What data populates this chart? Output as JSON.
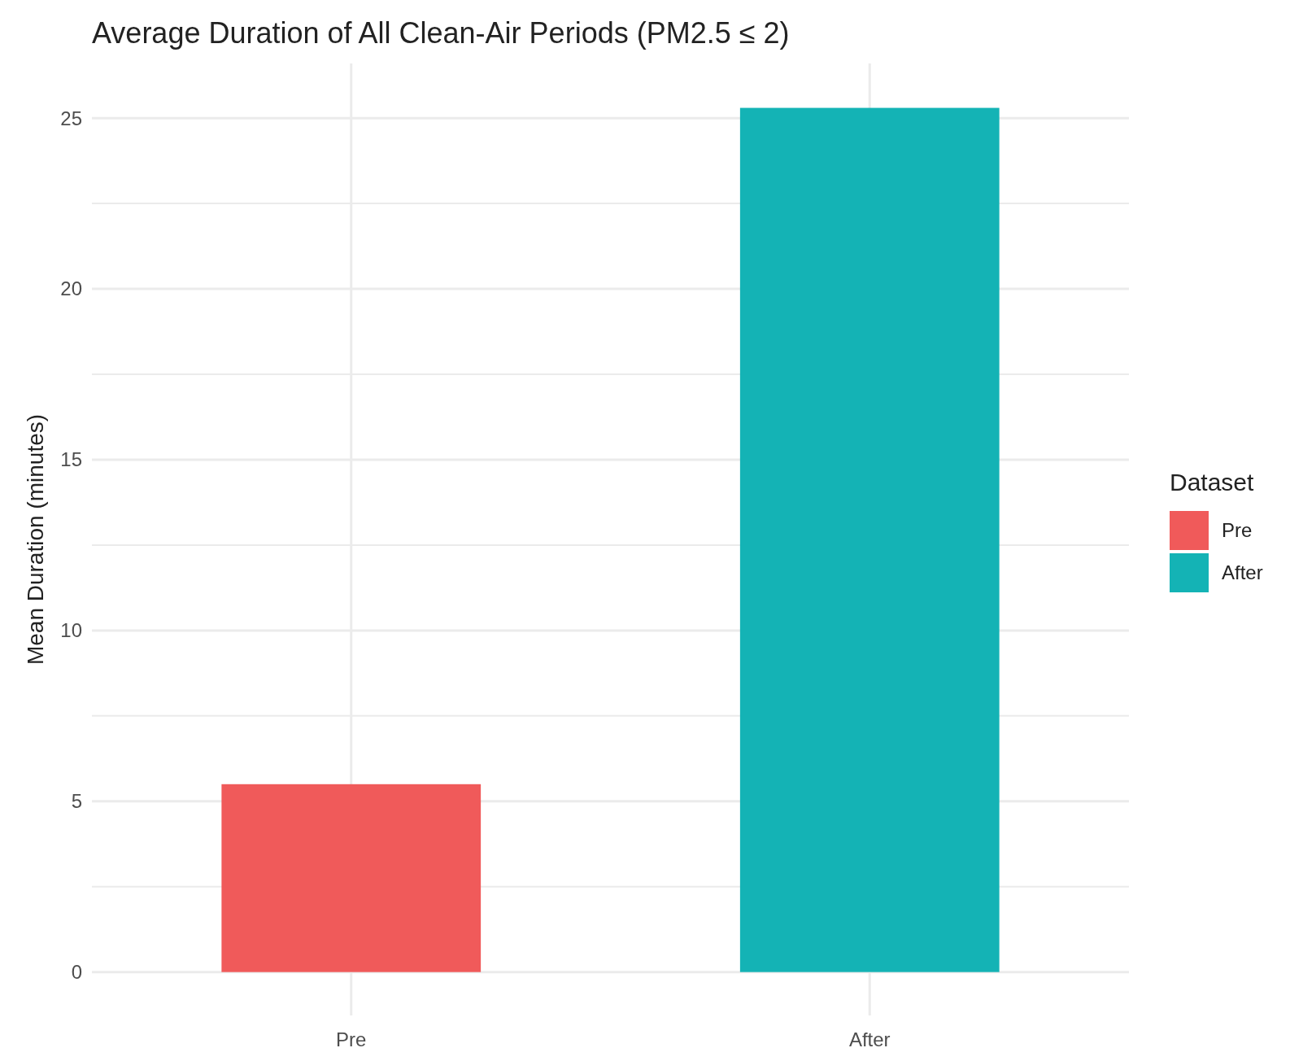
{
  "chart_data": {
    "type": "bar",
    "title": "Average Duration of All Clean-Air Periods (PM2.5 ≤ 2)",
    "ylabel": "Mean Duration (minutes)",
    "legend_title": "Dataset",
    "categories": [
      "Pre",
      "After"
    ],
    "series": [
      {
        "name": "Pre",
        "color": "#f05a5a",
        "values": [
          5.5,
          null
        ]
      },
      {
        "name": "After",
        "color": "#14b3b5",
        "values": [
          null,
          25.3
        ]
      }
    ],
    "ylim": [
      -1.27,
      26.6
    ],
    "yticks": [
      0,
      {
        "value": 2.5,
        "label": null
      },
      5,
      {
        "value": 7.5,
        "label": null
      },
      10,
      {
        "value": 12.5,
        "label": null
      },
      15,
      {
        "value": 17.5,
        "label": null
      },
      20,
      {
        "value": 22.5,
        "label": null
      },
      25
    ],
    "grid": true,
    "legend": "right"
  }
}
